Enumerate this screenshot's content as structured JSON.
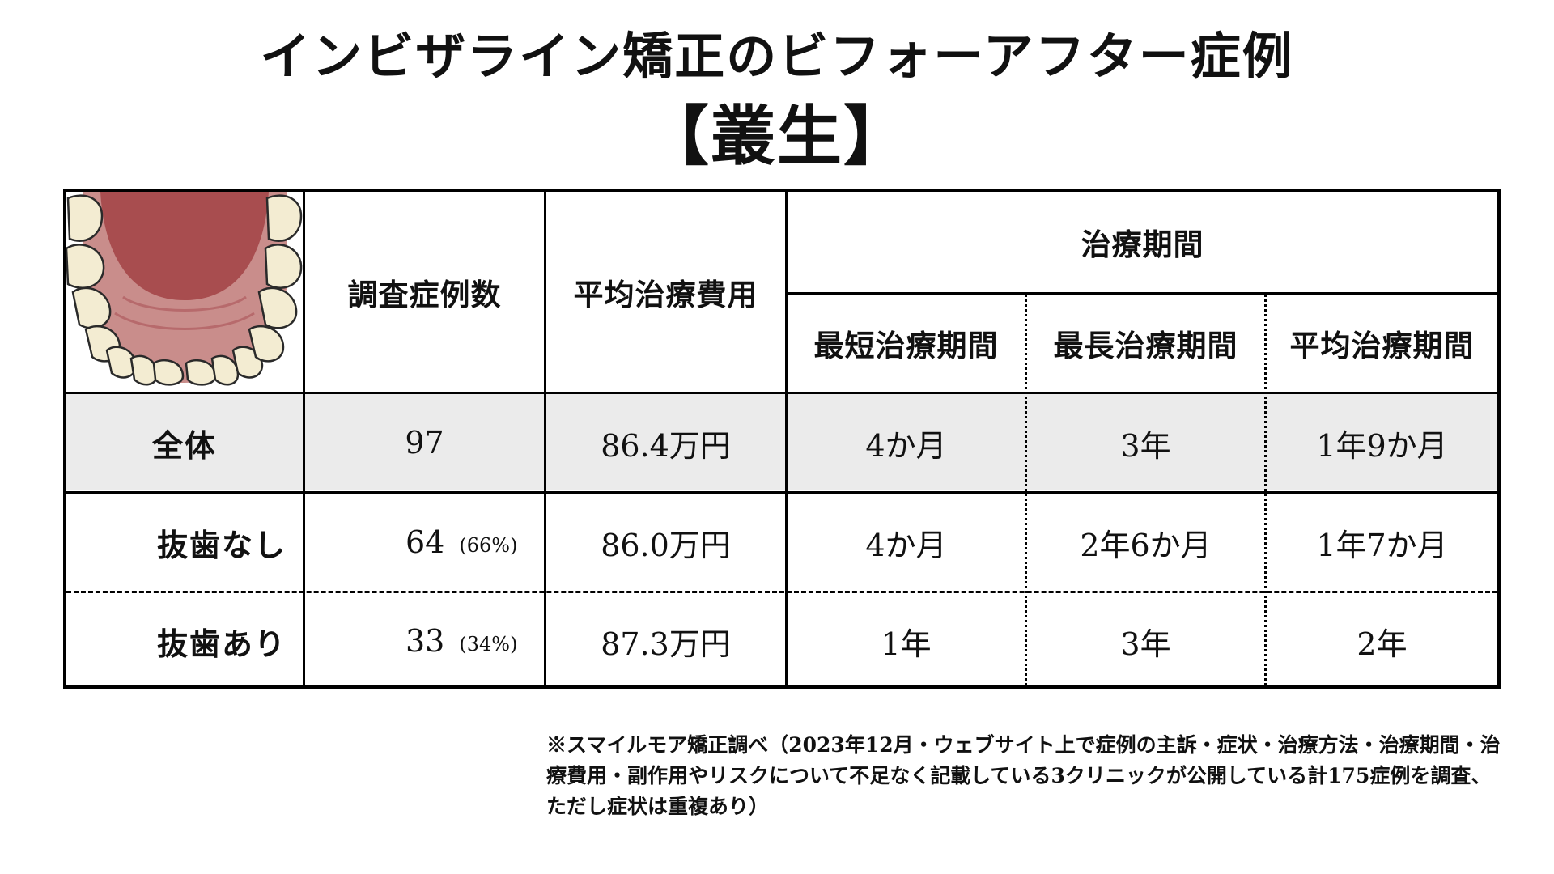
{
  "title": {
    "main": "インビザライン矯正のビフォーアフター症例",
    "sub": "【叢生】"
  },
  "table": {
    "headers": {
      "cases": "調査症例数",
      "avg_cost": "平均治療費用",
      "period_group": "治療期間",
      "min_period": "最短治療期間",
      "max_period": "最長治療期間",
      "avg_period": "平均治療期間"
    },
    "rows": [
      {
        "label": "全体",
        "cases": "97",
        "pct": "",
        "cost": "86.4万円",
        "min": "4か月",
        "max": "3年",
        "avg": "1年9か月"
      },
      {
        "label": "抜歯なし",
        "cases": "64",
        "pct": "(66%)",
        "cost": "86.0万円",
        "min": "4か月",
        "max": "2年6か月",
        "avg": "1年7か月"
      },
      {
        "label": "抜歯あり",
        "cases": "33",
        "pct": "(34%)",
        "cost": "87.3万円",
        "min": "1年",
        "max": "3年",
        "avg": "2年"
      }
    ]
  },
  "footnote": "※スマイルモア矯正調べ（2023年12月・ウェブサイト上で症例の主訴・症状・治療方法・治療期間・治療費用・副作用やリスクについて不足なく記載している3クリニックが公開している計175症例を調査、ただし症状は重複あり）",
  "colors": {
    "row_shade": "#ebebeb",
    "gum": "#a84d4f",
    "tooth": "#f3ecd2"
  },
  "icons": {
    "dental_arch": "upper-dental-arch-illustration"
  }
}
